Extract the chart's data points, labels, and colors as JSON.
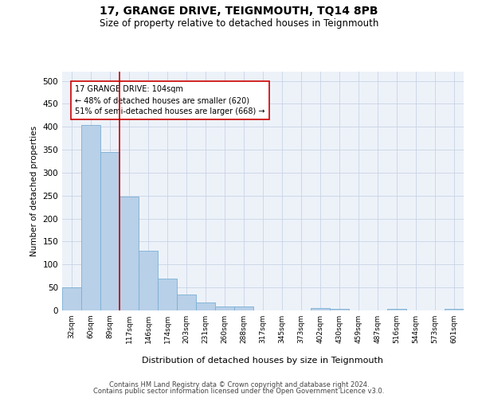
{
  "title1": "17, GRANGE DRIVE, TEIGNMOUTH, TQ14 8PB",
  "title2": "Size of property relative to detached houses in Teignmouth",
  "xlabel": "Distribution of detached houses by size in Teignmouth",
  "ylabel": "Number of detached properties",
  "categories": [
    "32sqm",
    "60sqm",
    "89sqm",
    "117sqm",
    "146sqm",
    "174sqm",
    "203sqm",
    "231sqm",
    "260sqm",
    "288sqm",
    "317sqm",
    "345sqm",
    "373sqm",
    "402sqm",
    "430sqm",
    "459sqm",
    "487sqm",
    "516sqm",
    "544sqm",
    "573sqm",
    "601sqm"
  ],
  "values": [
    50,
    403,
    345,
    247,
    130,
    70,
    35,
    18,
    8,
    8,
    0,
    0,
    0,
    6,
    4,
    0,
    0,
    4,
    0,
    0,
    3
  ],
  "bar_color": "#b8d0e8",
  "bar_edge_color": "#7aafd4",
  "grid_color": "#c8d4e4",
  "vline_x": 2.5,
  "vline_color": "#cc0000",
  "annotation_text": "17 GRANGE DRIVE: 104sqm\n← 48% of detached houses are smaller (620)\n51% of semi-detached houses are larger (668) →",
  "annotation_box_color": "#ffffff",
  "annotation_box_edge": "#cc0000",
  "ylim": [
    0,
    520
  ],
  "yticks": [
    0,
    50,
    100,
    150,
    200,
    250,
    300,
    350,
    400,
    450,
    500
  ],
  "footer1": "Contains HM Land Registry data © Crown copyright and database right 2024.",
  "footer2": "Contains public sector information licensed under the Open Government Licence v3.0.",
  "bg_color": "#edf2f9"
}
